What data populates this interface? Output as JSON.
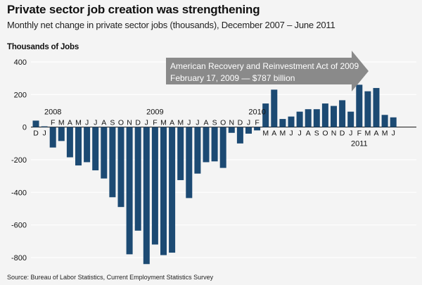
{
  "title": "Private sector job creation was strengthening",
  "subtitle": "Monthly net change in private sector jobs (thousands), December 2007 – June 2011",
  "source": "Source: Bureau of Labor Statistics, Current Employment Statistics Survey",
  "colors": {
    "bar": "#1c4a73",
    "banner": "#8a8a8a",
    "background": "#f4f4f4",
    "grid": "#ffffff"
  },
  "banner": {
    "line1": "American Recovery and Reinvestment Act of 2009",
    "line2": "February 17, 2009 — $787 billion"
  },
  "chart_data": {
    "type": "bar",
    "ylabel": "Thousands of Jobs",
    "ylim": [
      -850,
      400
    ],
    "yticks": [
      400,
      200,
      0,
      -200,
      -400,
      -600,
      -800
    ],
    "grid": true,
    "categories": [
      "D",
      "J",
      "F",
      "M",
      "A",
      "M",
      "J",
      "J",
      "A",
      "S",
      "O",
      "N",
      "D",
      "J",
      "F",
      "M",
      "A",
      "M",
      "J",
      "J",
      "A",
      "S",
      "O",
      "N",
      "D",
      "J",
      "F",
      "M",
      "A",
      "M",
      "J",
      "J",
      "A",
      "S",
      "O",
      "N",
      "D",
      "J",
      "F",
      "M",
      "A",
      "M",
      "J"
    ],
    "values": [
      40,
      5,
      -125,
      -85,
      -185,
      -235,
      -215,
      -265,
      -315,
      -430,
      -490,
      -780,
      -635,
      -840,
      -720,
      -785,
      -770,
      -325,
      -435,
      -285,
      -215,
      -210,
      -250,
      -35,
      -100,
      -40,
      -20,
      145,
      230,
      50,
      65,
      95,
      110,
      110,
      145,
      130,
      165,
      95,
      260,
      220,
      240,
      75,
      60
    ],
    "year_labels": [
      {
        "label": "2008",
        "index": 2
      },
      {
        "label": "2009",
        "index": 14
      },
      {
        "label": "2010",
        "index": 26
      },
      {
        "label": "2011",
        "index": 38
      }
    ]
  }
}
